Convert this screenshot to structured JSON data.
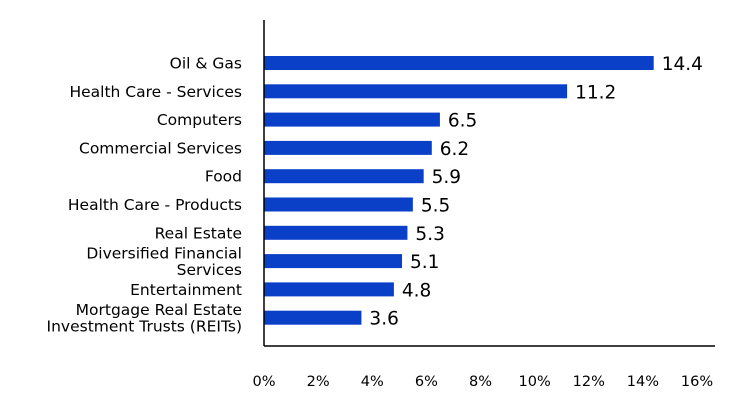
{
  "chart_data": {
    "type": "bar",
    "orientation": "horizontal",
    "categories": [
      [
        "Oil & Gas"
      ],
      [
        "Health Care - Services"
      ],
      [
        "Computers"
      ],
      [
        "Commercial Services"
      ],
      [
        "Food"
      ],
      [
        "Health Care - Products"
      ],
      [
        "Real Estate"
      ],
      [
        "Diversified Financial",
        "Services"
      ],
      [
        "Entertainment"
      ],
      [
        "Mortgage Real Estate",
        "Investment Trusts (REITs)"
      ]
    ],
    "values": [
      14.4,
      11.2,
      6.5,
      6.2,
      5.9,
      5.5,
      5.3,
      5.1,
      4.8,
      3.6
    ],
    "value_labels": [
      "14.4",
      "11.2",
      "6.5",
      "6.2",
      "5.9",
      "5.5",
      "5.3",
      "5.1",
      "4.8",
      "3.6"
    ],
    "x_ticks": [
      "0%",
      "2%",
      "4%",
      "6%",
      "8%",
      "10%",
      "12%",
      "14%",
      "16%"
    ],
    "xlim": [
      0,
      16
    ],
    "bar_color": "#0a3fc7",
    "grid": false,
    "title": "",
    "xlabel": "",
    "ylabel": ""
  }
}
